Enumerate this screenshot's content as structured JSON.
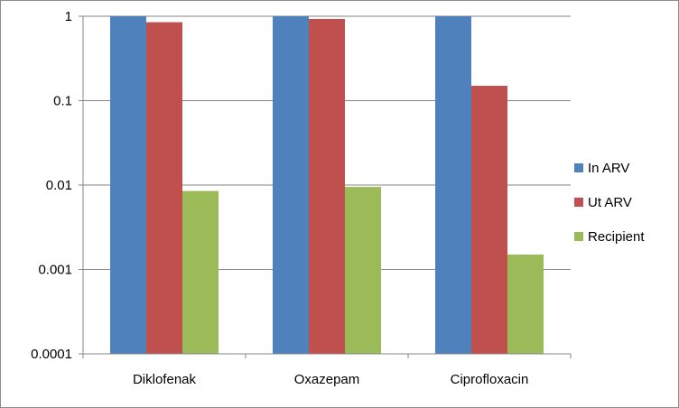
{
  "chart_data": {
    "type": "bar",
    "yscale": "log",
    "ylim": [
      0.0001,
      1
    ],
    "yticks": [
      {
        "value": 1,
        "label": "1"
      },
      {
        "value": 0.1,
        "label": "0.1"
      },
      {
        "value": 0.01,
        "label": "0.01"
      },
      {
        "value": 0.001,
        "label": "0.001"
      },
      {
        "value": 0.0001,
        "label": "0.0001"
      }
    ],
    "grid": true,
    "legend_position": "right",
    "categories": [
      "Diklofenak",
      "Oxazepam",
      "Ciprofloxacin"
    ],
    "series": [
      {
        "name": "In ARV",
        "color": "#4f81bd",
        "values": [
          1,
          1,
          1
        ]
      },
      {
        "name": "Ut ARV",
        "color": "#c0504d",
        "values": [
          0.85,
          0.93,
          0.15
        ]
      },
      {
        "name": "Recipient",
        "color": "#9bbb59",
        "values": [
          0.0085,
          0.0095,
          0.0015
        ]
      }
    ]
  }
}
